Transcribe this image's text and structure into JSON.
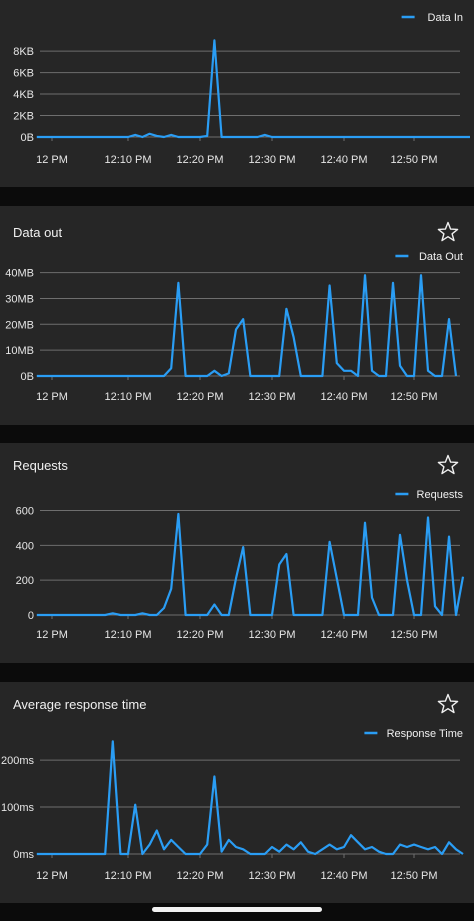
{
  "colors": {
    "line": "#2a9df4",
    "grid": "#6e6e6e",
    "card": "#262626",
    "text": "#e8e8e8"
  },
  "icons": {
    "favorite": "star-outline-icon"
  },
  "chart_data": [
    {
      "id": "data-in",
      "type": "line",
      "title": "",
      "has_star": false,
      "legend": "Data In",
      "x_ticks": [
        "12 PM",
        "12:10 PM",
        "12:20 PM",
        "12:30 PM",
        "12:40 PM",
        "12:50 PM"
      ],
      "x_tick_minutes": [
        0,
        10,
        20,
        30,
        40,
        50
      ],
      "x_range": [
        -2,
        58
      ],
      "y_ticks": [
        "0B",
        "2KB",
        "4KB",
        "6KB",
        "8KB"
      ],
      "y_tick_values": [
        0,
        2,
        4,
        6,
        8
      ],
      "ylim": [
        0,
        9.5
      ],
      "unit": "KB",
      "series": [
        {
          "name": "Data In",
          "x": [
            -2,
            10,
            11,
            12,
            13,
            14,
            15,
            16,
            17,
            18,
            20,
            21,
            22,
            23,
            24,
            25,
            26,
            28,
            29,
            30,
            31,
            32,
            34,
            40,
            50,
            58
          ],
          "y": [
            0,
            0,
            0.2,
            0,
            0.3,
            0.1,
            0,
            0.2,
            0,
            0,
            0,
            0.1,
            9,
            0,
            0,
            0,
            0,
            0,
            0.2,
            0,
            0,
            0,
            0,
            0,
            0,
            0
          ]
        }
      ]
    },
    {
      "id": "data-out",
      "type": "line",
      "title": "Data out",
      "has_star": true,
      "legend": "Data Out",
      "x_ticks": [
        "12 PM",
        "12:10 PM",
        "12:20 PM",
        "12:30 PM",
        "12:40 PM",
        "12:50 PM"
      ],
      "x_tick_minutes": [
        0,
        10,
        20,
        30,
        40,
        50
      ],
      "x_range": [
        -2,
        58
      ],
      "y_ticks": [
        "0B",
        "10MB",
        "20MB",
        "30MB",
        "40MB"
      ],
      "y_tick_values": [
        0,
        10,
        20,
        30,
        40
      ],
      "ylim": [
        0,
        41
      ],
      "unit": "MB",
      "series": [
        {
          "name": "Data Out",
          "x": [
            -2,
            15,
            16,
            17,
            18,
            19,
            20,
            21,
            22,
            23,
            24,
            25,
            26,
            27,
            28,
            29,
            30,
            31,
            32,
            33,
            34,
            35,
            36,
            37,
            38,
            39,
            40,
            41,
            42,
            43,
            44,
            45,
            46,
            47,
            48,
            49,
            50,
            51,
            52,
            53,
            54,
            55,
            56
          ],
          "y": [
            0,
            0,
            3,
            36,
            0,
            0,
            0,
            0,
            2,
            0,
            1,
            18,
            22,
            0,
            0,
            0,
            0,
            0,
            26,
            15,
            0,
            0,
            0,
            0,
            35,
            5,
            2,
            2,
            0,
            39,
            2,
            0,
            0,
            36,
            4,
            0,
            0,
            39,
            2,
            0,
            0,
            22,
            0
          ]
        }
      ]
    },
    {
      "id": "requests",
      "type": "line",
      "title": "Requests",
      "has_star": true,
      "legend": "Requests",
      "x_ticks": [
        "12 PM",
        "12:10 PM",
        "12:20 PM",
        "12:30 PM",
        "12:40 PM",
        "12:50 PM"
      ],
      "x_tick_minutes": [
        0,
        10,
        20,
        30,
        40,
        50
      ],
      "x_range": [
        -2,
        58
      ],
      "y_ticks": [
        "0",
        "200",
        "400",
        "600"
      ],
      "y_tick_values": [
        0,
        200,
        400,
        600
      ],
      "ylim": [
        0,
        620
      ],
      "unit": "",
      "series": [
        {
          "name": "Requests",
          "x": [
            -2,
            7,
            8,
            9,
            10,
            11,
            12,
            13,
            14,
            15,
            16,
            17,
            18,
            19,
            20,
            21,
            22,
            23,
            24,
            25,
            26,
            27,
            28,
            29,
            30,
            31,
            32,
            33,
            34,
            35,
            36,
            37,
            38,
            39,
            40,
            41,
            42,
            43,
            44,
            45,
            46,
            47,
            48,
            49,
            50,
            51,
            52,
            53,
            54,
            55,
            56,
            57
          ],
          "y": [
            0,
            0,
            10,
            0,
            0,
            0,
            10,
            0,
            0,
            40,
            150,
            580,
            0,
            0,
            0,
            0,
            60,
            0,
            0,
            210,
            390,
            0,
            0,
            0,
            0,
            290,
            350,
            0,
            0,
            0,
            0,
            0,
            420,
            210,
            0,
            0,
            0,
            530,
            100,
            0,
            0,
            0,
            460,
            200,
            0,
            0,
            560,
            50,
            0,
            450,
            0,
            220
          ]
        }
      ]
    },
    {
      "id": "response-time",
      "type": "line",
      "title": "Average response time",
      "has_star": true,
      "legend": "Response Time",
      "x_ticks": [
        "12 PM",
        "12:10 PM",
        "12:20 PM",
        "12:30 PM",
        "12:40 PM",
        "12:50 PM"
      ],
      "x_tick_minutes": [
        0,
        10,
        20,
        30,
        40,
        50
      ],
      "x_range": [
        -2,
        58
      ],
      "y_ticks": [
        "0ms",
        "100ms",
        "200ms"
      ],
      "y_tick_values": [
        0,
        100,
        200
      ],
      "ylim": [
        0,
        230
      ],
      "unit": "ms",
      "series": [
        {
          "name": "Response Time",
          "x": [
            -2,
            7,
            8,
            9,
            10,
            11,
            12,
            13,
            14,
            15,
            16,
            17,
            18,
            19,
            20,
            21,
            22,
            23,
            24,
            25,
            26,
            27,
            28,
            29,
            30,
            31,
            32,
            33,
            34,
            35,
            36,
            37,
            38,
            39,
            40,
            41,
            42,
            43,
            44,
            45,
            46,
            47,
            48,
            49,
            50,
            51,
            52,
            53,
            54,
            55,
            56,
            57
          ],
          "y": [
            0,
            0,
            240,
            0,
            0,
            105,
            0,
            20,
            50,
            10,
            30,
            15,
            0,
            0,
            0,
            20,
            165,
            5,
            30,
            15,
            10,
            0,
            0,
            0,
            15,
            5,
            20,
            10,
            25,
            5,
            0,
            10,
            20,
            10,
            15,
            40,
            25,
            10,
            15,
            5,
            0,
            0,
            20,
            15,
            20,
            15,
            10,
            15,
            0,
            25,
            10,
            0
          ]
        }
      ]
    }
  ]
}
